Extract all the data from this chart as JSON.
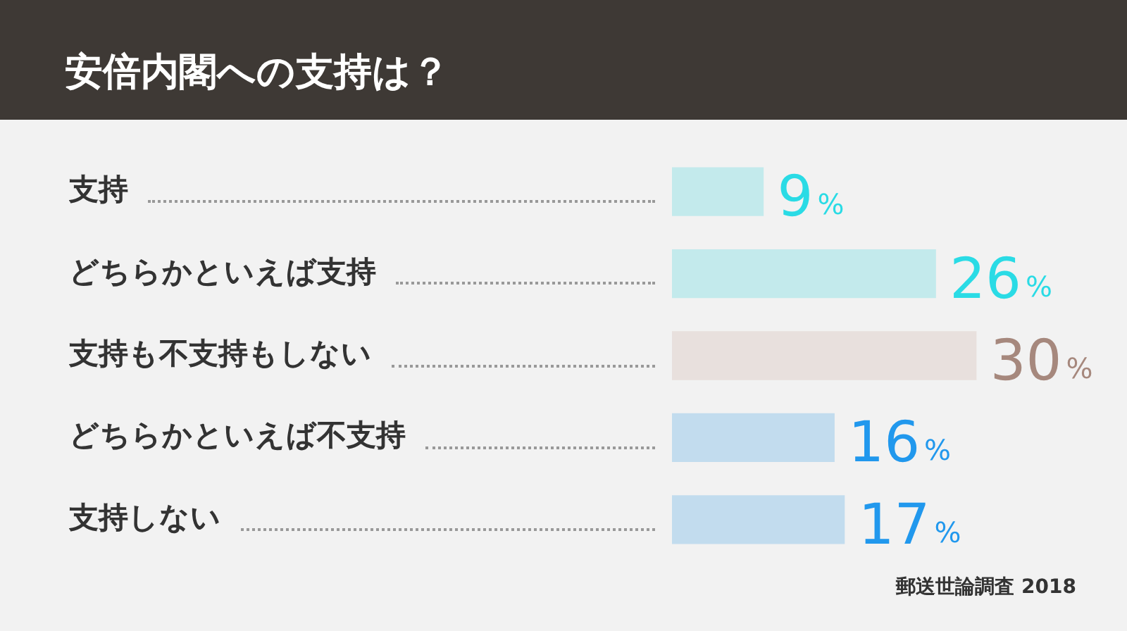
{
  "chart_data": {
    "type": "bar",
    "orientation": "horizontal",
    "title": "安倍内閣への支持は？",
    "categories": [
      "支持",
      "どちらかといえば支持",
      "支持も不支持もしない",
      "どちらかといえば不支持",
      "支持しない"
    ],
    "values": [
      9,
      26,
      30,
      16,
      17
    ],
    "colors": [
      "#c3eaec",
      "#c3eaec",
      "#e8e0dd",
      "#c2dcee",
      "#c2dcee"
    ],
    "value_labels": [
      "9%",
      "26%",
      "30%",
      "16%",
      "17%"
    ],
    "annotations": [
      "郵送世論調査 2018"
    ],
    "grid": false,
    "legend": false
  }
}
